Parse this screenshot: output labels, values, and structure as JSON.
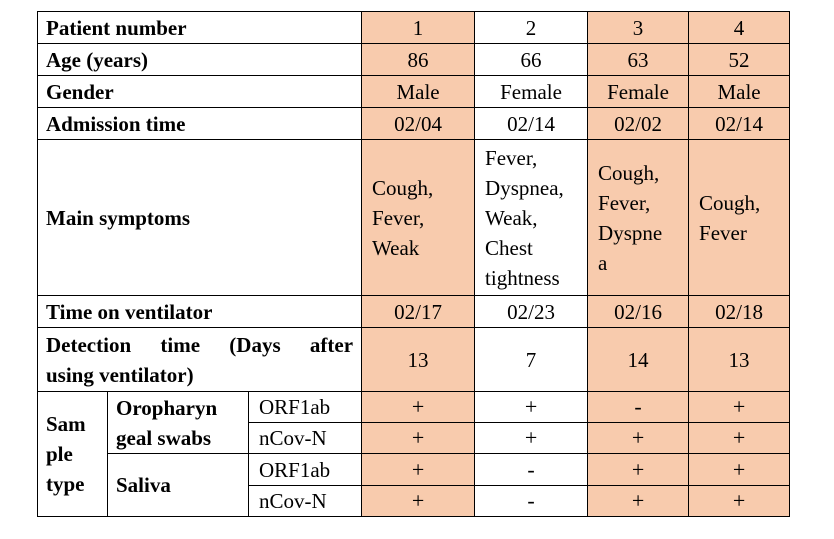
{
  "colors": {
    "highlight": "#f8cbad",
    "border": "#000000"
  },
  "rows": {
    "patient_number": {
      "label": "Patient number",
      "values": [
        "1",
        "2",
        "3",
        "4"
      ]
    },
    "age": {
      "label": "Age (years)",
      "values": [
        "86",
        "66",
        "63",
        "52"
      ]
    },
    "gender": {
      "label": "Gender",
      "values": [
        "Male",
        "Female",
        "Female",
        "Male"
      ]
    },
    "admission": {
      "label": "Admission time",
      "values": [
        "02/04",
        "02/14",
        "02/02",
        "02/14"
      ]
    },
    "symptoms": {
      "label": "Main symptoms",
      "values": [
        [
          "Cough,",
          "Fever,",
          "Weak"
        ],
        [
          "Fever,",
          "Dyspnea,",
          "Weak,",
          "Chest",
          "tightness"
        ],
        [
          "Cough,",
          "Fever,",
          "Dyspne",
          "a"
        ],
        [
          "Cough,",
          "Fever"
        ]
      ]
    },
    "ventilator": {
      "label": "Time on ventilator",
      "values": [
        "02/17",
        "02/23",
        "02/16",
        "02/18"
      ]
    },
    "detection": {
      "label_line1_words": [
        "Detection",
        "time",
        "(Days",
        "after"
      ],
      "label_line2": "using ventilator)",
      "values": [
        "13",
        "7",
        "14",
        "13"
      ]
    },
    "sample": {
      "label_lines": [
        "Sam",
        "ple",
        "type"
      ],
      "oro_label_lines": [
        "Oropharyn",
        "geal swabs"
      ],
      "saliva_label": "Saliva",
      "oro_orf": {
        "gene": "ORF1ab",
        "values": [
          "+",
          "+",
          "-",
          "+"
        ]
      },
      "oro_ncov": {
        "gene": "nCov-N",
        "values": [
          "+",
          "+",
          "+",
          "+"
        ]
      },
      "sal_orf": {
        "gene": "ORF1ab",
        "values": [
          "+",
          "-",
          "+",
          "+"
        ]
      },
      "sal_ncov": {
        "gene": "nCov-N",
        "values": [
          "+",
          "-",
          "+",
          "+"
        ]
      }
    }
  }
}
